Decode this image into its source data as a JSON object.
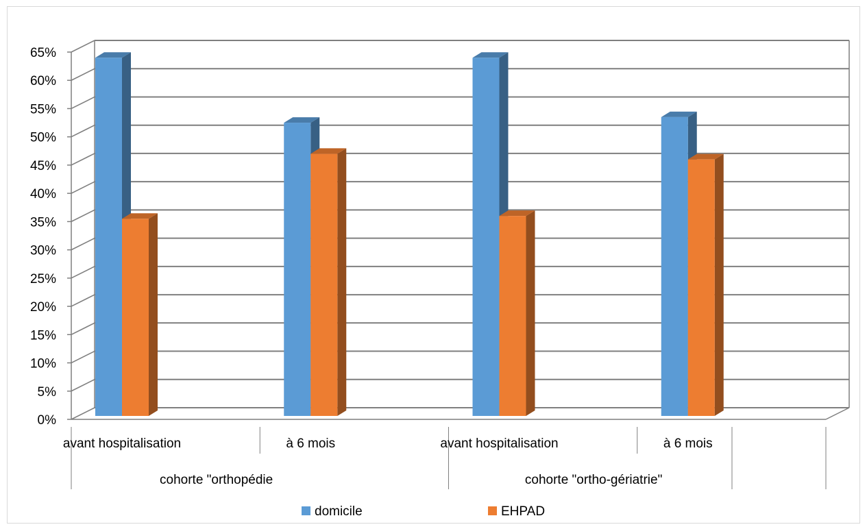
{
  "chart_data": {
    "type": "bar",
    "title": "",
    "xlabel": "",
    "ylabel": "",
    "ylim": [
      0,
      0.65
    ],
    "yticks": [
      "0%",
      "5%",
      "10%",
      "15%",
      "20%",
      "25%",
      "30%",
      "35%",
      "40%",
      "45%",
      "50%",
      "55%",
      "60%",
      "65%"
    ],
    "grid": true,
    "three_d": true,
    "legend_position": "bottom",
    "categories": [
      "avant hospitalisation",
      "à 6 mois",
      "avant hospitalisation",
      "à 6 mois"
    ],
    "groups": [
      {
        "label": "cohorte \"orthopédie",
        "span": 2
      },
      {
        "label": "cohorte \"ortho-gériatrie\"",
        "span": 2
      }
    ],
    "series": [
      {
        "name": "domicile",
        "color": "#5b9bd5",
        "values": [
          0.64,
          0.525,
          0.64,
          0.535
        ]
      },
      {
        "name": "EHPAD",
        "color": "#ed7d31",
        "values": [
          0.355,
          0.47,
          0.36,
          0.46
        ]
      }
    ]
  }
}
